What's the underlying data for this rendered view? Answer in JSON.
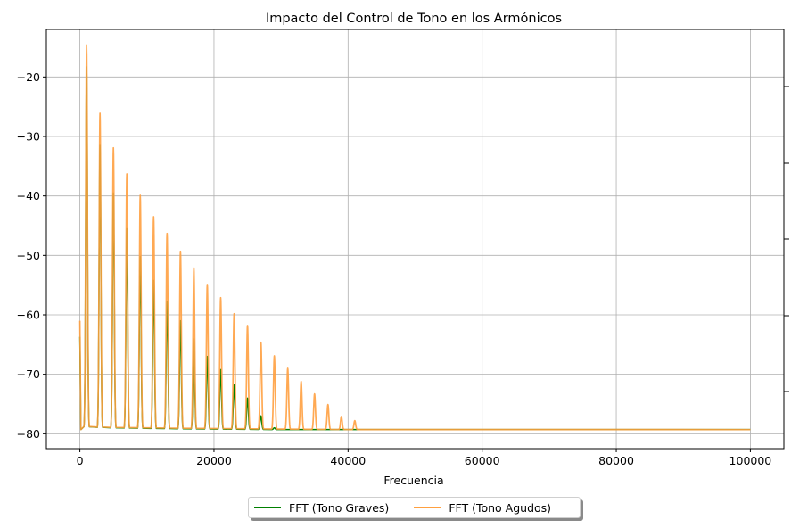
{
  "chart_data": {
    "type": "line",
    "title": "Impacto del Control de Tono en los Armónicos",
    "xlabel": "Frecuencia",
    "ylabel": "",
    "xlim": [
      -5000,
      105000
    ],
    "ylim": [
      -82.5,
      -12.0
    ],
    "xticks": [
      0,
      20000,
      40000,
      60000,
      80000,
      100000
    ],
    "yticks": [
      -80,
      -70,
      -60,
      -50,
      -40,
      -30,
      -20
    ],
    "xtick_labels": [
      "0",
      "20000",
      "40000",
      "60000",
      "80000",
      "100000"
    ],
    "ytick_labels": [
      "−80",
      "−70",
      "−60",
      "−50",
      "−40",
      "−30",
      "−20"
    ],
    "grid": true,
    "legend_position": "below-center",
    "noise_floor_db": -79.3,
    "peak_width_hz": 180,
    "series": [
      {
        "name": "FFT (Tono Graves)",
        "color": "#008000",
        "x_end": 100000,
        "start_db": -63.7,
        "harmonics_hz": [
          1000,
          3000,
          5000,
          7000,
          9000,
          11000,
          13000,
          15000,
          17000,
          19000,
          21000,
          23000,
          25000,
          27000,
          29000
        ],
        "peaks_db": [
          -18.3,
          -31.5,
          -39.5,
          -45.5,
          -50.2,
          -54.2,
          -57.7,
          -61.0,
          -64.0,
          -67.0,
          -69.2,
          -71.8,
          -74.0,
          -77.0,
          -79.0
        ]
      },
      {
        "name": "FFT (Tono Agudos)",
        "color": "#ffa040",
        "x_end": 100000,
        "start_db": -61.0,
        "harmonics_hz": [
          1000,
          3000,
          5000,
          7000,
          9000,
          11000,
          13000,
          15000,
          17000,
          19000,
          21000,
          23000,
          25000,
          27000,
          29000,
          31000,
          33000,
          35000,
          37000,
          39000,
          41000
        ],
        "peaks_db": [
          -14.6,
          -26.1,
          -31.9,
          -36.3,
          -39.9,
          -43.5,
          -46.3,
          -49.3,
          -52.1,
          -54.9,
          -57.1,
          -59.8,
          -61.8,
          -64.6,
          -66.9,
          -69.0,
          -71.2,
          -73.3,
          -75.1,
          -77.1,
          -77.8
        ]
      }
    ]
  }
}
